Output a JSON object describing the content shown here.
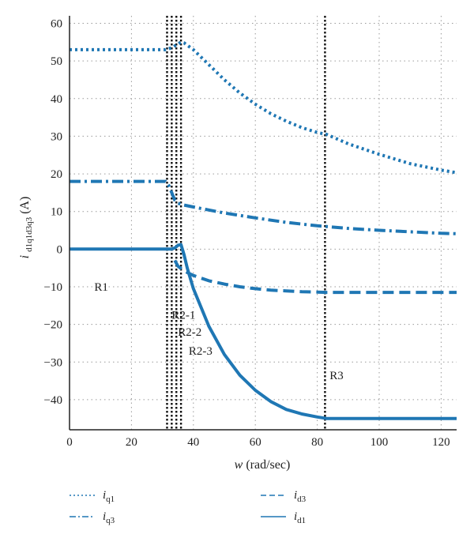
{
  "chart_data": {
    "type": "line",
    "title": "",
    "xlabel": "w (rad/sec)",
    "ylabel": "i d1q1d3q3 (A)",
    "xlim": [
      0,
      125
    ],
    "ylim": [
      -48,
      62
    ],
    "xticks": [
      0,
      20,
      40,
      60,
      80,
      100,
      120
    ],
    "yticks": [
      60,
      50,
      40,
      30,
      20,
      10,
      0,
      -10,
      -20,
      -30,
      -40
    ],
    "ytick_labels": [
      "60",
      "50",
      "40",
      "30",
      "20",
      "10",
      "0",
      "−10",
      "−20",
      "−30",
      "−40"
    ],
    "grid": true,
    "color": "#1f77b4",
    "series": [
      {
        "name": "i_q1",
        "label_main": "i",
        "label_sub": "q1",
        "style": "dotted",
        "x": [
          0,
          20,
          31,
          33,
          35,
          36,
          37,
          40,
          45,
          50,
          55,
          60,
          65,
          70,
          75,
          80,
          83,
          90,
          100,
          110,
          120,
          125
        ],
        "y": [
          53,
          53,
          53,
          53.5,
          54.5,
          55,
          54.8,
          53,
          49,
          45,
          41.5,
          38.5,
          36,
          34,
          32.3,
          31,
          30.5,
          28,
          25.2,
          22.7,
          21,
          20.3
        ]
      },
      {
        "name": "i_q3",
        "label_main": "i",
        "label_sub": "q3",
        "style": "dashdot",
        "x": [
          0,
          20,
          31,
          32,
          34,
          35,
          37,
          40,
          45,
          50,
          60,
          70,
          80,
          90,
          100,
          110,
          120,
          125
        ],
        "y": [
          18,
          18,
          18,
          17,
          13,
          12.2,
          11.7,
          11.2,
          10.4,
          9.6,
          8.3,
          7.1,
          6.2,
          5.5,
          5,
          4.6,
          4.2,
          4.1
        ]
      },
      {
        "name": "i_d3",
        "label_main": "i",
        "label_sub": "d3",
        "style": "dashed",
        "x": [
          34,
          35,
          37,
          40,
          45,
          50,
          55,
          60,
          65,
          70,
          75,
          80,
          83,
          90,
          100,
          110,
          120,
          125
        ],
        "y": [
          -3,
          -4.5,
          -5.8,
          -7,
          -8.4,
          -9.3,
          -10,
          -10.5,
          -10.9,
          -11.1,
          -11.3,
          -11.4,
          -11.5,
          -11.5,
          -11.5,
          -11.5,
          -11.5,
          -11.5
        ]
      },
      {
        "name": "i_d1",
        "label_main": "i",
        "label_sub": "d1",
        "style": "solid",
        "x": [
          0,
          20,
          31,
          33,
          34,
          35,
          36,
          37,
          38,
          40,
          45,
          50,
          55,
          60,
          65,
          70,
          75,
          80,
          83,
          90,
          100,
          110,
          120,
          125
        ],
        "y": [
          0,
          0,
          0,
          0,
          0.3,
          1,
          1.2,
          -1.5,
          -5,
          -10.5,
          -20.5,
          -28,
          -33.5,
          -37.5,
          -40.5,
          -42.6,
          -43.8,
          -44.6,
          -45,
          -45,
          -45,
          -45,
          -45,
          -45
        ]
      }
    ],
    "vlines": [
      31.5,
      33,
      34.5,
      36,
      82.5
    ],
    "annotations": [
      {
        "text": "R1",
        "x": 8,
        "y": -10
      },
      {
        "text": "R2-1",
        "x": 33,
        "y": -17.5
      },
      {
        "text": "R2-2",
        "x": 35,
        "y": -22
      },
      {
        "text": "R2-3",
        "x": 38.5,
        "y": -27
      },
      {
        "text": "R3",
        "x": 84,
        "y": -33.5
      }
    ],
    "legend_position": "bottom"
  }
}
